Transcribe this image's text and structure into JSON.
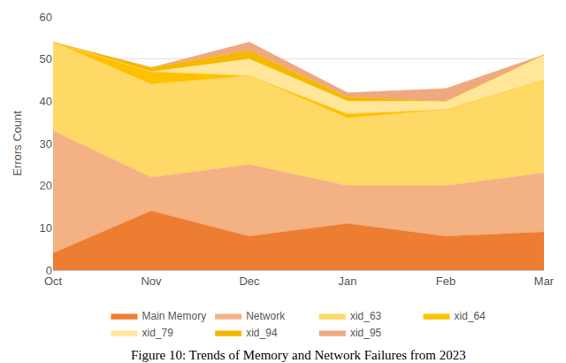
{
  "chart_data": {
    "type": "area",
    "stacked": true,
    "grid": true,
    "legend": "bottom",
    "y_label": "Errors Count",
    "annotations": [
      "Figure 10: Trends of Memory and Network Failures from 2023"
    ],
    "categories": [
      "Oct",
      "Nov",
      "Dec",
      "Jan",
      "Feb",
      "Mar"
    ],
    "ylim": [
      0,
      60
    ],
    "yticks": [
      0,
      10,
      20,
      30,
      40,
      50,
      60
    ],
    "series": [
      {
        "name": "Main Memory",
        "color": "#ed7d31",
        "values": [
          4,
          14,
          8,
          11,
          8,
          9
        ]
      },
      {
        "name": "Network",
        "color": "#f4b183",
        "values": [
          29,
          8,
          17,
          9,
          12,
          14
        ]
      },
      {
        "name": "xid_63",
        "color": "#ffd966",
        "values": [
          21,
          22,
          21,
          16,
          18,
          22
        ]
      },
      {
        "name": "xid_64",
        "color": "#ffc000",
        "values": [
          0,
          3,
          0,
          1,
          0,
          0
        ]
      },
      {
        "name": "xid_79",
        "color": "#ffe699",
        "values": [
          0,
          0,
          4,
          3,
          2,
          6
        ]
      },
      {
        "name": "xid_94",
        "color": "#f5b800",
        "values": [
          0,
          1,
          2,
          1,
          0,
          0
        ]
      },
      {
        "name": "xid_95",
        "color": "#f0a880",
        "values": [
          0,
          0,
          2,
          1,
          3,
          0
        ]
      }
    ]
  }
}
